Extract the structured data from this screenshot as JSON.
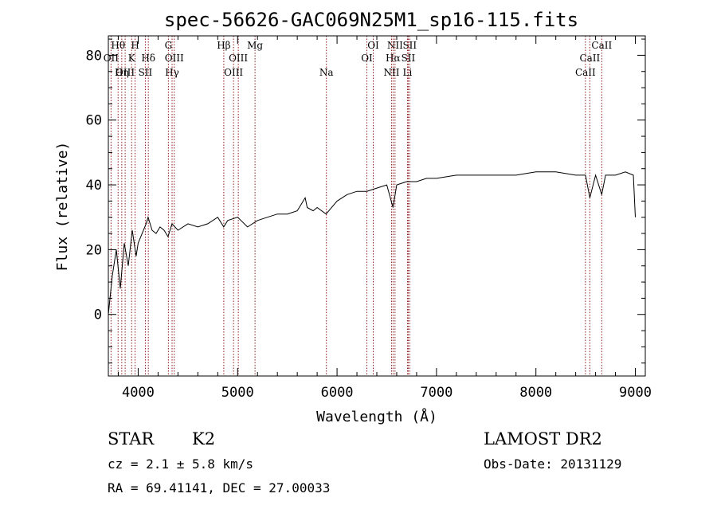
{
  "chart_data": {
    "type": "line",
    "title": "spec-56626-GAC069N25M1_sp16-115.fits",
    "xlabel": "Wavelength (Å)",
    "ylabel": "Flux (relative)",
    "xlim": [
      3700,
      9100
    ],
    "ylim": [
      -19,
      86
    ],
    "xticks": [
      4000,
      5000,
      6000,
      7000,
      8000,
      9000
    ],
    "yticks": [
      0,
      20,
      40,
      60,
      80
    ],
    "grid": false,
    "series": [
      {
        "x": [
          3700,
          3740,
          3780,
          3820,
          3860,
          3900,
          3940,
          3980,
          4000,
          4040,
          4080,
          4100,
          4140,
          4180,
          4220,
          4260,
          4300,
          4340,
          4400,
          4500,
          4600,
          4700,
          4800,
          4860,
          4900,
          5000,
          5100,
          5200,
          5300,
          5400,
          5500,
          5600,
          5680,
          5700,
          5760,
          5800,
          5890,
          6000,
          6100,
          6200,
          6300,
          6400,
          6500,
          6563,
          6600,
          6700,
          6800,
          6900,
          7000,
          7200,
          7400,
          7600,
          7800,
          8000,
          8200,
          8400,
          8498,
          8542,
          8600,
          8662,
          8700,
          8800,
          8900,
          8980,
          9000
        ],
        "y": [
          0,
          12,
          20,
          8,
          22,
          15,
          26,
          18,
          22,
          25,
          28,
          30,
          26,
          25,
          27,
          26,
          24,
          28,
          26,
          28,
          27,
          28,
          30,
          27,
          29,
          30,
          27,
          29,
          30,
          31,
          31,
          32,
          36,
          33,
          32,
          33,
          31,
          35,
          37,
          38,
          38,
          39,
          40,
          33,
          40,
          41,
          41,
          42,
          42,
          43,
          43,
          43,
          43,
          44,
          44,
          43,
          43,
          36,
          43,
          37,
          43,
          43,
          44,
          43,
          30
        ]
      }
    ],
    "lines": [
      {
        "label": "Hθ",
        "wave": 3798,
        "row": 1
      },
      {
        "label": "OII",
        "wave": 3727,
        "row": 2
      },
      {
        "label": "OIII",
        "wave": 3869,
        "row": 3
      },
      {
        "label": "Hη",
        "wave": 3835,
        "row": 3
      },
      {
        "label": "H",
        "wave": 3969,
        "row": 1
      },
      {
        "label": "K",
        "wave": 3934,
        "row": 2
      },
      {
        "label": "Hδ",
        "wave": 4102,
        "row": 2
      },
      {
        "label": "SII",
        "wave": 4072,
        "row": 3
      },
      {
        "label": "G",
        "wave": 4304,
        "row": 1
      },
      {
        "label": "OIII",
        "wave": 4363,
        "row": 2
      },
      {
        "label": "Hγ",
        "wave": 4341,
        "row": 3
      },
      {
        "label": "Hβ",
        "wave": 4861,
        "row": 1
      },
      {
        "label": "OIII",
        "wave": 5007,
        "row": 2
      },
      {
        "label": "OIII",
        "wave": 4959,
        "row": 3
      },
      {
        "label": "Mg",
        "wave": 5175,
        "row": 1
      },
      {
        "label": "Na",
        "wave": 5893,
        "row": 3
      },
      {
        "label": "OI",
        "wave": 6364,
        "row": 1
      },
      {
        "label": "OI",
        "wave": 6300,
        "row": 2
      },
      {
        "label": "NII",
        "wave": 6583,
        "row": 1
      },
      {
        "label": "Hα",
        "wave": 6563,
        "row": 2
      },
      {
        "label": "NII",
        "wave": 6548,
        "row": 3
      },
      {
        "label": "SII",
        "wave": 6731,
        "row": 1
      },
      {
        "label": "SII",
        "wave": 6716,
        "row": 2
      },
      {
        "label": "Li",
        "wave": 6708,
        "row": 3
      },
      {
        "label": "CaII",
        "wave": 8662,
        "row": 1
      },
      {
        "label": "CaII",
        "wave": 8542,
        "row": 2
      },
      {
        "label": "CaII",
        "wave": 8498,
        "row": 3
      }
    ]
  },
  "info": {
    "class": "STAR",
    "subclass": "K2",
    "survey": "LAMOST DR2",
    "cz": "cz = 2.1 ± 5.8 km/s",
    "obsdate": "Obs-Date: 20131129",
    "radec": "RA =  69.41141, DEC =  27.00033"
  }
}
